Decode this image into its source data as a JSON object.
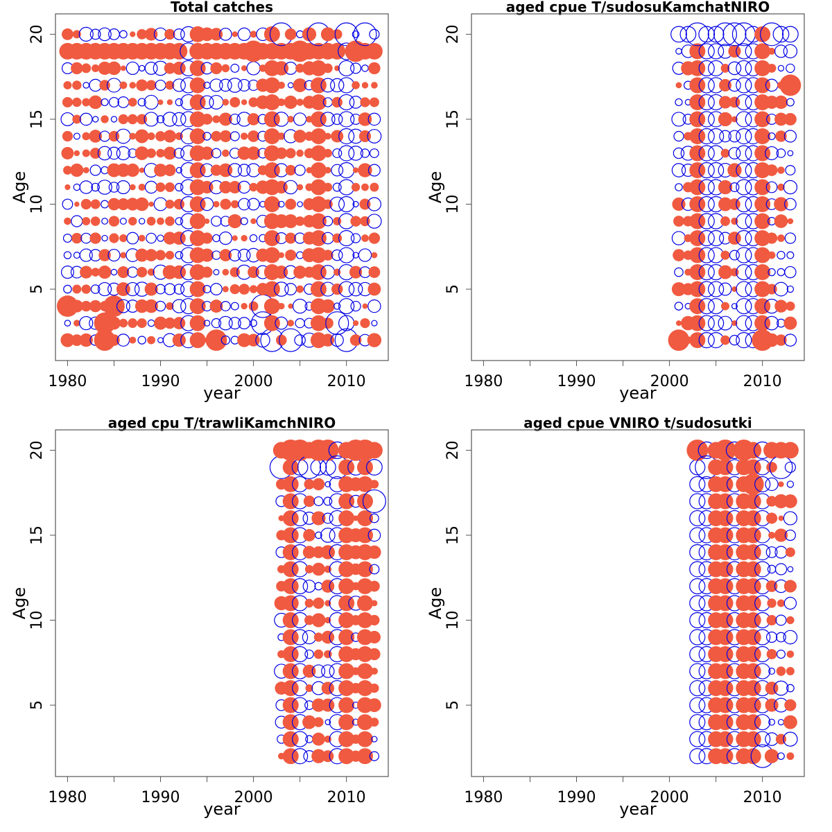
{
  "colors": {
    "positive": "#f05a40",
    "negative": "#0000e6",
    "frame": "#555555"
  },
  "chart_data": [
    {
      "type": "scatter",
      "title": "Total catches",
      "xlabel": "year",
      "ylabel": "Age",
      "xticks": [
        1980,
        1990,
        2000,
        2010
      ],
      "yticks": [
        5,
        10,
        15,
        20
      ],
      "xlim": [
        1978.7,
        2014.5
      ],
      "ylim": [
        0.8,
        21.2
      ],
      "years": [
        1980,
        2013
      ],
      "ages": [
        2,
        20
      ],
      "marker": "bubble: filled = positive residual, open = negative residual",
      "highlights": {
        "filled_year_columns": [
          1994,
          2002,
          2007
        ],
        "open_year_columns": [
          1993,
          2010
        ],
        "filled_age_rows": [
          19
        ],
        "large_open_bubbles": [
          [
            2003,
            20
          ],
          [
            2007,
            20
          ],
          [
            2010,
            20
          ],
          [
            2012,
            20
          ],
          [
            2001,
            4
          ],
          [
            2001,
            3
          ],
          [
            2002,
            2
          ],
          [
            2004,
            2
          ],
          [
            2009,
            3
          ],
          [
            2010,
            2
          ]
        ],
        "large_filled_bubbles": [
          [
            1984,
            2
          ],
          [
            1984,
            3
          ],
          [
            1985,
            4
          ],
          [
            1980,
            4
          ],
          [
            1996,
            2
          ],
          [
            2000,
            19
          ],
          [
            2005,
            19
          ],
          [
            2011,
            19
          ]
        ]
      }
    },
    {
      "type": "scatter",
      "title": "aged    cpue    T/sudosuKamchatNIRO",
      "xlabel": "year",
      "ylabel": "Age",
      "xticks": [
        1980,
        1990,
        2000,
        2010
      ],
      "yticks": [
        5,
        10,
        15,
        20
      ],
      "xlim": [
        1978.7,
        2014.5
      ],
      "ylim": [
        0.8,
        21.2
      ],
      "years": [
        2001,
        2013
      ],
      "ages": [
        2,
        20
      ],
      "marker": "bubble: filled = positive residual, open = negative residual",
      "highlights": {
        "filled_year_columns": [
          2003,
          2010
        ],
        "open_year_columns": [
          2004,
          2005,
          2008,
          2009
        ],
        "open_age_rows": [
          20
        ],
        "large_open_bubbles": [
          [
            2003,
            20
          ],
          [
            2006,
            20
          ],
          [
            2007,
            20
          ],
          [
            2008,
            20
          ],
          [
            2011,
            20
          ]
        ],
        "large_filled_bubbles": [
          [
            2010,
            2
          ],
          [
            2013,
            17
          ],
          [
            2001,
            2
          ]
        ]
      }
    },
    {
      "type": "scatter",
      "title": "aged    cpu    T/trawliKamchNIRO",
      "xlabel": "year",
      "ylabel": "Age",
      "xticks": [
        1980,
        1990,
        2000,
        2010
      ],
      "yticks": [
        5,
        10,
        15,
        20
      ],
      "xlim": [
        1978.7,
        2014.5
      ],
      "ylim": [
        0.8,
        21.2
      ],
      "years": [
        2003,
        2013
      ],
      "ages": [
        2,
        20
      ],
      "marker": "bubble: filled = positive residual, open = negative residual",
      "highlights": {
        "filled_year_columns": [
          2004,
          2010,
          2012
        ],
        "open_year_columns": [
          2005,
          2009
        ],
        "filled_age_rows": [
          20
        ],
        "open_age_rows": [
          19
        ],
        "large_open_bubbles": [
          [
            2003,
            19
          ],
          [
            2006,
            19
          ],
          [
            2009,
            19
          ],
          [
            2013,
            17
          ]
        ],
        "large_filled_bubbles": [
          [
            2004,
            20
          ],
          [
            2005,
            20
          ],
          [
            2007,
            20
          ],
          [
            2008,
            20
          ],
          [
            2011,
            20
          ],
          [
            2012,
            20
          ]
        ]
      }
    },
    {
      "type": "scatter",
      "title": "aged    cpue    VNIRO    t/sudosutki",
      "xlabel": "year",
      "ylabel": "Age",
      "xticks": [
        1980,
        1990,
        2000,
        2010
      ],
      "yticks": [
        5,
        10,
        15,
        20
      ],
      "xlim": [
        1978.7,
        2014.5
      ],
      "ylim": [
        0.8,
        21.2
      ],
      "years": [
        2003,
        2013
      ],
      "ages": [
        2,
        20
      ],
      "marker": "bubble: filled = positive residual, open = negative residual",
      "highlights": {
        "filled_year_columns": [
          2005,
          2006,
          2008,
          2009
        ],
        "open_year_columns": [
          2003,
          2004,
          2007,
          2010
        ],
        "filled_age_rows": [
          20
        ],
        "large_open_bubbles": [
          [
            2004,
            19
          ],
          [
            2010,
            2
          ],
          [
            2012,
            19
          ]
        ],
        "large_filled_bubbles": [
          [
            2003,
            20
          ],
          [
            2006,
            20
          ],
          [
            2008,
            20
          ],
          [
            2009,
            18
          ]
        ]
      }
    }
  ]
}
